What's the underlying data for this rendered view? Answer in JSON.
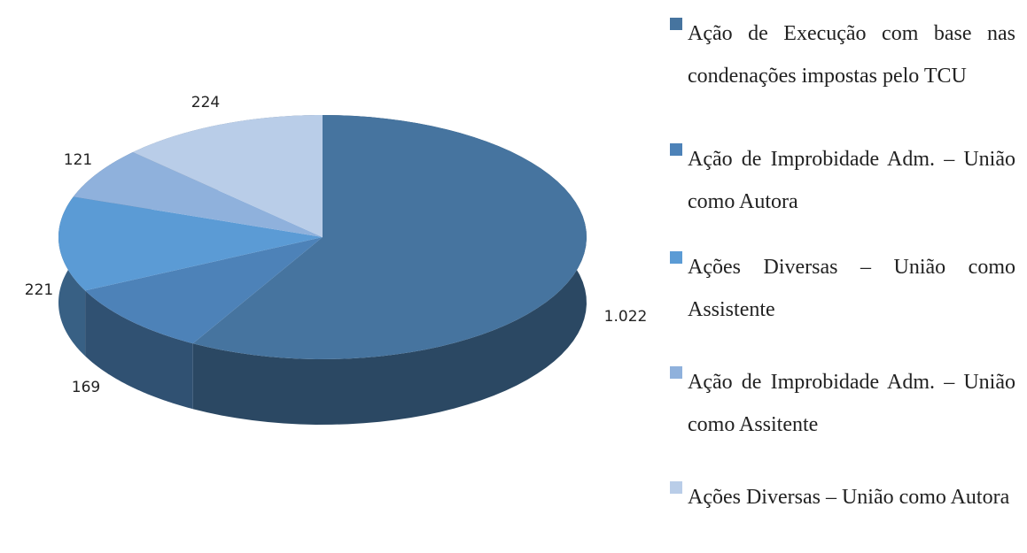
{
  "chart_data": {
    "type": "pie",
    "categories": [
      "Ação de Execução com base nas condenações impostas pelo TCU",
      "Ação de Improbidade Adm. – União como Autora",
      "Ações Diversas – União como Assistente",
      "Ação de Improbidade Adm. – União como Assitente",
      "Ações Diversas – União como Autora"
    ],
    "values": [
      1022,
      169,
      221,
      121,
      224
    ],
    "value_labels": [
      "1.022",
      "169",
      "221",
      "121",
      "224"
    ],
    "colors": [
      "#46749f",
      "#4d82b8",
      "#5b9bd5",
      "#8fb1dc",
      "#b9cde8"
    ]
  }
}
